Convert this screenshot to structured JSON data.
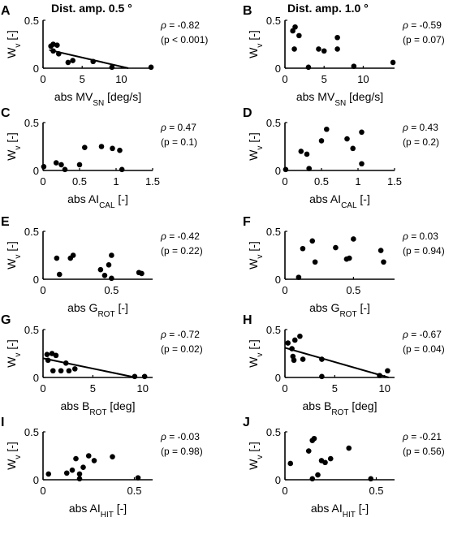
{
  "column_titles": [
    "Dist. amp. 0.5 °",
    "Dist. amp. 1.0 °"
  ],
  "chart_data": [
    {
      "type": "scatter",
      "panel": "A",
      "xlabel": {
        "main": "abs MV",
        "sub": "SN",
        "tail": " [deg/s]"
      },
      "ylabel": {
        "main": "W",
        "sub": "v",
        "tail": " [-]"
      },
      "xlim": [
        0,
        14
      ],
      "ylim": [
        0,
        0.5
      ],
      "xticks": [
        0,
        5,
        10
      ],
      "yticks": [
        0,
        0.5
      ],
      "xtick_labels": [
        "0",
        "5",
        "10"
      ],
      "ytick_labels": [
        "0",
        "0.5"
      ],
      "points": [
        [
          1.0,
          0.23
        ],
        [
          1.3,
          0.25
        ],
        [
          1.8,
          0.24
        ],
        [
          1.3,
          0.18
        ],
        [
          2.0,
          0.15
        ],
        [
          3.2,
          0.06
        ],
        [
          3.8,
          0.08
        ],
        [
          6.4,
          0.07
        ],
        [
          8.8,
          0.01
        ],
        [
          13.8,
          0.01
        ]
      ],
      "fit": [
        [
          0.8,
          0.19
        ],
        [
          10.9,
          0.0
        ]
      ],
      "rho": "-0.82",
      "p": "(p < 0.001)"
    },
    {
      "type": "scatter",
      "panel": "B",
      "xlabel": {
        "main": "abs MV",
        "sub": "SN",
        "tail": " [deg/s]"
      },
      "ylabel": {
        "main": "W",
        "sub": "v",
        "tail": " [-]"
      },
      "xlim": [
        0,
        14
      ],
      "ylim": [
        0,
        0.5
      ],
      "xticks": [
        0,
        5,
        10
      ],
      "yticks": [
        0,
        0.5
      ],
      "xtick_labels": [
        "0",
        "5",
        "10"
      ],
      "ytick_labels": [
        "0",
        "0.5"
      ],
      "points": [
        [
          1.0,
          0.39
        ],
        [
          1.3,
          0.43
        ],
        [
          1.8,
          0.34
        ],
        [
          1.2,
          0.2
        ],
        [
          4.3,
          0.2
        ],
        [
          5.0,
          0.18
        ],
        [
          6.7,
          0.32
        ],
        [
          6.7,
          0.2
        ],
        [
          3.0,
          0.01
        ],
        [
          8.8,
          0.02
        ],
        [
          13.8,
          0.06
        ]
      ],
      "fit": [],
      "rho": "-0.59",
      "p": "(p = 0.07)"
    },
    {
      "type": "scatter",
      "panel": "C",
      "xlabel": {
        "main": "abs AI",
        "sub": "CAL",
        "tail": " [-]"
      },
      "ylabel": {
        "main": "W",
        "sub": "v",
        "tail": " [-]"
      },
      "xlim": [
        0,
        1.5
      ],
      "ylim": [
        0,
        0.5
      ],
      "xticks": [
        0,
        0.5,
        1,
        1.5
      ],
      "yticks": [
        0,
        0.5
      ],
      "xtick_labels": [
        "0",
        "0.5",
        "1",
        "1.5"
      ],
      "ytick_labels": [
        "0",
        "0.5"
      ],
      "points": [
        [
          0.01,
          0.04
        ],
        [
          0.18,
          0.08
        ],
        [
          0.25,
          0.06
        ],
        [
          0.3,
          0.01
        ],
        [
          0.5,
          0.06
        ],
        [
          0.57,
          0.24
        ],
        [
          0.8,
          0.25
        ],
        [
          0.95,
          0.23
        ],
        [
          1.05,
          0.21
        ],
        [
          1.08,
          0.01
        ]
      ],
      "fit": [],
      "rho": "0.47",
      "p": "(p = 0.1)"
    },
    {
      "type": "scatter",
      "panel": "D",
      "xlabel": {
        "main": "abs AI",
        "sub": "CAL",
        "tail": " [-]"
      },
      "ylabel": {
        "main": "W",
        "sub": "v",
        "tail": " [-]"
      },
      "xlim": [
        0,
        1.5
      ],
      "ylim": [
        0,
        0.5
      ],
      "xticks": [
        0,
        0.5,
        1,
        1.5
      ],
      "yticks": [
        0,
        0.5
      ],
      "xtick_labels": [
        "0",
        "0.5",
        "1",
        "1.5"
      ],
      "ytick_labels": [
        "0",
        "0.5"
      ],
      "points": [
        [
          0.01,
          0.01
        ],
        [
          0.22,
          0.2
        ],
        [
          0.3,
          0.17
        ],
        [
          0.33,
          0.02
        ],
        [
          0.5,
          0.31
        ],
        [
          0.57,
          0.43
        ],
        [
          0.85,
          0.33
        ],
        [
          0.93,
          0.23
        ],
        [
          1.05,
          0.4
        ],
        [
          1.05,
          0.07
        ]
      ],
      "fit": [],
      "rho": "0.43",
      "p": "(p = 0.2)"
    },
    {
      "type": "scatter",
      "panel": "E",
      "xlabel": {
        "main": "abs G",
        "sub": "ROT",
        "tail": " [-]"
      },
      "ylabel": {
        "main": "W",
        "sub": "v",
        "tail": " [-]"
      },
      "xlim": [
        0,
        0.8
      ],
      "ylim": [
        0,
        0.5
      ],
      "xticks": [
        0,
        0.5
      ],
      "yticks": [
        0,
        0.5
      ],
      "xtick_labels": [
        "0",
        "0.5"
      ],
      "ytick_labels": [
        "0",
        "0.5"
      ],
      "points": [
        [
          0.1,
          0.22
        ],
        [
          0.12,
          0.05
        ],
        [
          0.2,
          0.22
        ],
        [
          0.22,
          0.25
        ],
        [
          0.42,
          0.1
        ],
        [
          0.45,
          0.04
        ],
        [
          0.48,
          0.15
        ],
        [
          0.5,
          0.25
        ],
        [
          0.5,
          0.01
        ],
        [
          0.7,
          0.07
        ],
        [
          0.72,
          0.06
        ]
      ],
      "fit": [],
      "rho": "-0.42",
      "p": "(p = 0.22)"
    },
    {
      "type": "scatter",
      "panel": "F",
      "xlabel": {
        "main": "abs G",
        "sub": "ROT",
        "tail": " [-]"
      },
      "ylabel": {
        "main": "W",
        "sub": "v",
        "tail": " [-]"
      },
      "xlim": [
        0,
        0.8
      ],
      "ylim": [
        0,
        0.5
      ],
      "xticks": [
        0,
        0.5
      ],
      "yticks": [
        0,
        0.5
      ],
      "xtick_labels": [
        "0",
        "0.5"
      ],
      "ytick_labels": [
        "0",
        "0.5"
      ],
      "points": [
        [
          0.1,
          0.02
        ],
        [
          0.13,
          0.32
        ],
        [
          0.2,
          0.4
        ],
        [
          0.22,
          0.18
        ],
        [
          0.37,
          0.33
        ],
        [
          0.45,
          0.21
        ],
        [
          0.47,
          0.22
        ],
        [
          0.5,
          0.42
        ],
        [
          0.7,
          0.3
        ],
        [
          0.72,
          0.18
        ]
      ],
      "fit": [],
      "rho": "0.03",
      "p": "(p = 0.94)"
    },
    {
      "type": "scatter",
      "panel": "G",
      "xlabel": {
        "main": "abs B",
        "sub": "ROT",
        "tail": " [deg]"
      },
      "ylabel": {
        "main": "W",
        "sub": "v",
        "tail": " [-]"
      },
      "xlim": [
        0,
        11
      ],
      "ylim": [
        0,
        0.5
      ],
      "xticks": [
        0,
        5,
        10
      ],
      "yticks": [
        0,
        0.5
      ],
      "xtick_labels": [
        "0",
        "5",
        "10"
      ],
      "ytick_labels": [
        "0",
        "0.5"
      ],
      "points": [
        [
          0.4,
          0.24
        ],
        [
          0.9,
          0.25
        ],
        [
          0.5,
          0.18
        ],
        [
          1.3,
          0.23
        ],
        [
          1.0,
          0.07
        ],
        [
          1.8,
          0.07
        ],
        [
          2.3,
          0.15
        ],
        [
          2.6,
          0.07
        ],
        [
          3.2,
          0.09
        ],
        [
          9.2,
          0.01
        ],
        [
          10.2,
          0.01
        ]
      ],
      "fit": [
        [
          0.0,
          0.2
        ],
        [
          9.3,
          0.0
        ]
      ],
      "rho": "-0.72",
      "p": "(p = 0.02)"
    },
    {
      "type": "scatter",
      "panel": "H",
      "xlabel": {
        "main": "abs B",
        "sub": "ROT",
        "tail": " [deg]"
      },
      "ylabel": {
        "main": "W",
        "sub": "v",
        "tail": " [-]"
      },
      "xlim": [
        0,
        11
      ],
      "ylim": [
        0,
        0.5
      ],
      "xticks": [
        0,
        5,
        10
      ],
      "yticks": [
        0,
        0.5
      ],
      "xtick_labels": [
        "0",
        "5",
        "10"
      ],
      "ytick_labels": [
        "0",
        "0.5"
      ],
      "points": [
        [
          0.3,
          0.36
        ],
        [
          0.7,
          0.3
        ],
        [
          1.0,
          0.39
        ],
        [
          1.5,
          0.43
        ],
        [
          0.8,
          0.22
        ],
        [
          0.9,
          0.18
        ],
        [
          1.8,
          0.19
        ],
        [
          3.7,
          0.19
        ],
        [
          3.7,
          0.01
        ],
        [
          9.5,
          0.02
        ],
        [
          10.3,
          0.07
        ]
      ],
      "fit": [
        [
          0.0,
          0.31
        ],
        [
          10.4,
          0.0
        ]
      ],
      "rho": "-0.67",
      "p": "(p = 0.04)"
    },
    {
      "type": "scatter",
      "panel": "I",
      "xlabel": {
        "main": "abs AI",
        "sub": "HIT",
        "tail": " [-]"
      },
      "ylabel": {
        "main": "W",
        "sub": "v",
        "tail": " [-]"
      },
      "xlim": [
        0,
        0.6
      ],
      "ylim": [
        0,
        0.5
      ],
      "xticks": [
        0,
        0.5
      ],
      "yticks": [
        0,
        0.5
      ],
      "xtick_labels": [
        "0",
        "0.5"
      ],
      "ytick_labels": [
        "0",
        "0.5"
      ],
      "points": [
        [
          0.03,
          0.06
        ],
        [
          0.13,
          0.07
        ],
        [
          0.16,
          0.1
        ],
        [
          0.18,
          0.22
        ],
        [
          0.2,
          0.06
        ],
        [
          0.22,
          0.13
        ],
        [
          0.25,
          0.25
        ],
        [
          0.28,
          0.2
        ],
        [
          0.38,
          0.24
        ],
        [
          0.52,
          0.02
        ],
        [
          0.2,
          0.01
        ]
      ],
      "fit": [],
      "rho": "-0.03",
      "p": "(p = 0.98)"
    },
    {
      "type": "scatter",
      "panel": "J",
      "xlabel": {
        "main": "abs AI",
        "sub": "HIT",
        "tail": " [-]"
      },
      "ylabel": {
        "main": "W",
        "sub": "v",
        "tail": " [-]"
      },
      "xlim": [
        0,
        0.6
      ],
      "ylim": [
        0,
        0.5
      ],
      "xticks": [
        0,
        0.5
      ],
      "yticks": [
        0,
        0.5
      ],
      "xtick_labels": [
        "0",
        "0.5"
      ],
      "ytick_labels": [
        "0",
        "0.5"
      ],
      "points": [
        [
          0.03,
          0.17
        ],
        [
          0.13,
          0.3
        ],
        [
          0.15,
          0.41
        ],
        [
          0.16,
          0.43
        ],
        [
          0.15,
          0.01
        ],
        [
          0.18,
          0.05
        ],
        [
          0.2,
          0.2
        ],
        [
          0.22,
          0.18
        ],
        [
          0.25,
          0.22
        ],
        [
          0.35,
          0.33
        ],
        [
          0.47,
          0.01
        ]
      ],
      "fit": [],
      "rho": "-0.21",
      "p": "(p = 0.56)"
    }
  ]
}
